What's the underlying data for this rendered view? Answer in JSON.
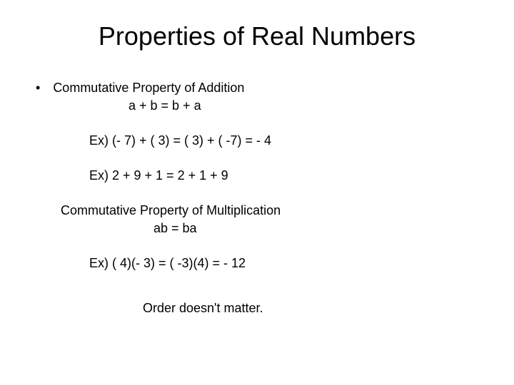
{
  "title": "Properties of Real Numbers",
  "bullet": "•",
  "property1": {
    "name": "Commutative Property of Addition",
    "formula": "a + b = b + a",
    "example1": "Ex)  (- 7) + ( 3) = ( 3) + ( -7)  = - 4",
    "example2": "Ex)  2 + 9 + 1 = 2 + 1 + 9"
  },
  "property2": {
    "name": "Commutative Property of Multiplication",
    "formula": "ab = ba",
    "example1": "Ex)   ( 4)(- 3) = ( -3)(4)  = - 12"
  },
  "summary": "Order doesn't matter.",
  "styling": {
    "background_color": "#ffffff",
    "text_color": "#000000",
    "title_fontsize": 36,
    "body_fontsize": 18,
    "font_family": "Arial"
  }
}
